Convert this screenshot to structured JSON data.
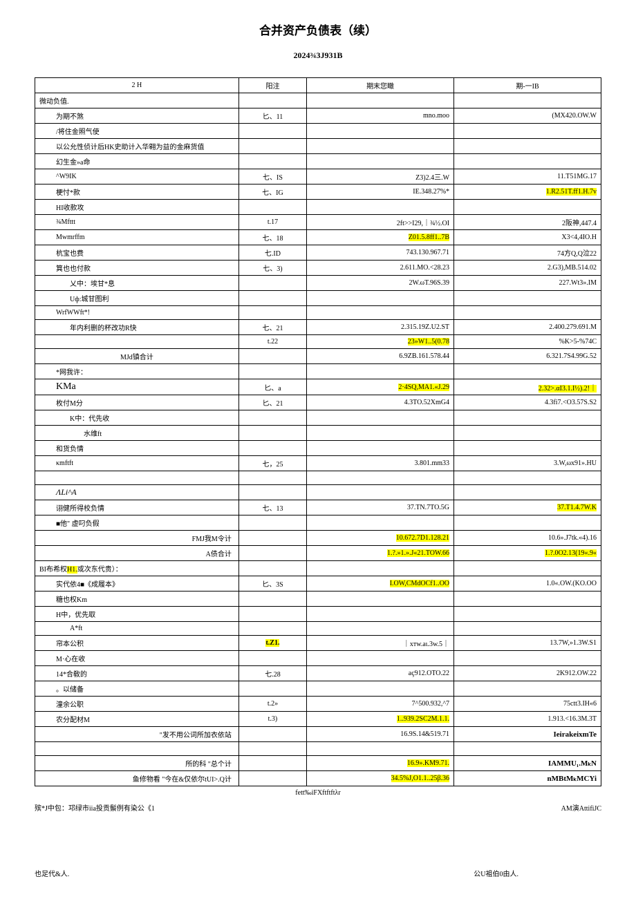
{
  "title": "合并资产负债表（续）",
  "subtitle": "2024¾3J931B",
  "header": {
    "col1": "2                          H",
    "col2": "阳注",
    "col3": "期末您瞰",
    "col4": "期-一IB"
  },
  "rows": [
    {
      "item": "微动负值.",
      "note": "",
      "end": "",
      "begin": "",
      "cls": ""
    },
    {
      "item": "为期不煞",
      "note": "匕、11",
      "end": "mno.moo",
      "begin": "(MX420.OW.W",
      "cls": "indent1"
    },
    {
      "item": "/将住金照气使",
      "note": "",
      "end": "",
      "begin": "",
      "cls": "indent1"
    },
    {
      "item": "以公允性侦计后HK史助计入华翱为益的金麻货值",
      "note": "",
      "end": "",
      "begin": "",
      "cls": "indent1"
    },
    {
      "item": "幻生金»a命",
      "note": "",
      "end": "",
      "begin": "",
      "cls": "indent1"
    },
    {
      "item": "^W9IK",
      "note": "七、IS",
      "end": "Z3)2.4三.W",
      "begin": "11.T51MG.17",
      "cls": "indent1"
    },
    {
      "item": "梗忖*款",
      "note": "七、IG",
      "end": "IE.348.27%*",
      "begin": "",
      "begin_hl": "1.R2.51T.ff1.H.7v",
      "cls": "indent1"
    },
    {
      "item": "HI收款攻",
      "note": "",
      "end": "",
      "begin": "",
      "cls": "indent1"
    },
    {
      "item": "¾Mfttt",
      "note": "t.17",
      "end": "2ft>>I29,｜¾½.OI",
      "begin": "2阪神,447.4",
      "cls": "indent1"
    },
    {
      "item": "Mwmrffm",
      "note": "七、18",
      "end": "",
      "end_hl": "Z01.5.8ff1..7B",
      "begin": "X3<4,4IO.H",
      "cls": "indent1"
    },
    {
      "item": "杭宝也费",
      "note": "七.ID",
      "end": "743.130.967.71",
      "begin": "74方Q,Q泣22",
      "cls": "indent1"
    },
    {
      "item": "箕也也付款",
      "note": "七、3)",
      "end": "2.611.MO.<28.23",
      "begin": "2.G3),MB.514.02",
      "cls": "indent1"
    },
    {
      "item": "乂中：埃甘*息",
      "note": "",
      "end": "2W.ωT.96S.39",
      "begin": "227.Wt3».IM",
      "cls": "indent2"
    },
    {
      "item": "Uф:城甘图利",
      "note": "",
      "end": "",
      "begin": "",
      "cls": "indent2"
    },
    {
      "item": "WrfWWft*!",
      "note": "",
      "end": "",
      "begin": "",
      "cls": "indent1"
    },
    {
      "item": "年内利删的杯改功R快",
      "note": "七、21",
      "end": "2.315.19Z.U2.ST",
      "begin": "2.400.279.691.M",
      "cls": "indent2"
    },
    {
      "item": "",
      "note": "t.22",
      "end": "",
      "end_hl": "23»W1..5(0.78",
      "begin": "%K>5-%74C",
      "cls": "indent1"
    },
    {
      "item": "MJd镇合计",
      "note": "",
      "end": "6.9ZB.161.578.44",
      "begin": "6.321.7S4.99G.52",
      "cls": "sum-center"
    },
    {
      "item": "*网我许：",
      "note": "",
      "end": "",
      "begin": "",
      "cls": "indent1"
    },
    {
      "item": "KMa",
      "note": "匕、a",
      "end": "",
      "end_hl": "2·4SQ,MA1.«J.29",
      "begin": "",
      "begin_hl": "2.32>.αI3.1.I½).2!｜",
      "cls": "indent1 serif-b"
    },
    {
      "item": "枚付M分",
      "note": "匕、21",
      "end": "4.3TO.52XmG4",
      "begin": "4.3fi7.<O3.57S.S2",
      "cls": "indent1"
    },
    {
      "item": "K中：代先收",
      "note": "",
      "end": "",
      "begin": "",
      "cls": "indent2"
    },
    {
      "item": "水维ft",
      "note": "",
      "end": "",
      "begin": "",
      "cls": "indent3"
    },
    {
      "item": "和货负情",
      "note": "",
      "end": "",
      "begin": "",
      "cls": "indent1"
    },
    {
      "item": "κmftft",
      "note": "七，25",
      "end": "3.801.mm33",
      "begin": "3.W,ωx91».HU",
      "cls": "indent1"
    },
    {
      "item": "",
      "note": "",
      "end": "",
      "begin": "",
      "cls": ""
    },
    {
      "item": "ΛLi^A",
      "note": "",
      "end": "",
      "begin": "",
      "cls": "indent1 serif-i"
    },
    {
      "item": "诩健所得校负情",
      "note": "七、13",
      "end": "37.TN.7TO.5G",
      "begin": "",
      "begin_hl": "37.T1.4.7W.K",
      "cls": "indent1"
    },
    {
      "item": "■他\" 虚叼负假",
      "note": "",
      "end": "",
      "begin": "",
      "cls": "indent1"
    },
    {
      "item": "FMJ我M令计",
      "note": "",
      "end": "",
      "end_hl": "10.672.7D1.128.21",
      "begin": "10.6».J7tk.«4).16",
      "cls": "sum-right"
    },
    {
      "item": "A债合计",
      "note": "",
      "end": "",
      "end_hl": "1.?.»1.».J«21.TOW.66",
      "begin": "",
      "begin_hl": "1.?.0O2.13(19«.9«",
      "cls": "sum-right"
    },
    {
      "item": "BI布希权H1.或次东代贵）：",
      "note": "",
      "end": "",
      "begin": "",
      "cls": "",
      "item_hl": "H1."
    },
    {
      "item": "实代依4■《成履本》",
      "note": "匕、3S",
      "end": "",
      "end_hl": "I.OW,CMdOCf1..OO",
      "begin": "1.0«.OW.(KO.OO",
      "cls": "indent1"
    },
    {
      "item": "糖也权Km",
      "note": "",
      "end": "",
      "begin": "",
      "cls": "indent1"
    },
    {
      "item": "H中，优先取",
      "note": "",
      "end": "",
      "begin": "",
      "cls": "indent1"
    },
    {
      "item": "A*ft",
      "note": "",
      "end": "",
      "begin": "",
      "cls": "indent2"
    },
    {
      "item": "帘本公积",
      "note": "",
      "note_hl": "t.Z1.",
      "end": "｜xтw.aι.3w.5｜",
      "begin": "13.7W,»1.3W.S1",
      "cls": "indent1"
    },
    {
      "item": "M·心在收",
      "note": "",
      "end": "",
      "begin": "",
      "cls": "indent1"
    },
    {
      "item": "14*合敎的",
      "note": "七.28",
      "end": "aç912.OTO.22",
      "begin": "2K912.OW.22",
      "cls": "indent1"
    },
    {
      "item": "。以储备",
      "note": "",
      "end": "",
      "begin": "",
      "cls": "indent1"
    },
    {
      "item": "潼余公职",
      "note": "t.2»",
      "end": "7^500.932,^7",
      "begin": "75ctt3.IH«6",
      "cls": "indent1"
    },
    {
      "item": "农分配材M",
      "note": "t.3)",
      "end": "",
      "end_hl": "1..939.2SC2M.1.1.",
      "begin": "1.913.<16.3M.3T",
      "cls": "indent1"
    },
    {
      "item": "\"发不用公词所加衣依站",
      "note": "",
      "end": "16.9S.14&519.71",
      "begin": "IeirakeixmTe",
      "begin_cls": "formula bold",
      "cls": "sum-right"
    },
    {
      "item": "",
      "note": "",
      "end": "",
      "begin": "",
      "cls": ""
    },
    {
      "item": "所的科 \"总个计",
      "note": "",
      "end": "",
      "end_hl": "16.9».KM9.71.",
      "begin": "IAMMU₁.MₖN",
      "begin_cls": "formula bold",
      "cls": "sum-right"
    },
    {
      "item": "鱼修物看 \"今在&仅依尔tUI>.Q计",
      "note": "",
      "end": "",
      "end_hl": "34.5%J,O1.1..25β.36",
      "begin": "nMBtMₖMCYi",
      "begin_cls": "formula bold",
      "cls": "sum-right"
    }
  ],
  "footer_center": "fett‰iFXftftftλr",
  "footer_left": "殡*J中包：邛绿市iia投贡鬃例有染公《1",
  "footer_right": "AM演AttifiJC",
  "footer_bottom_left": "也足代&人.",
  "footer_bottom_right": "公U袓伯0由人."
}
